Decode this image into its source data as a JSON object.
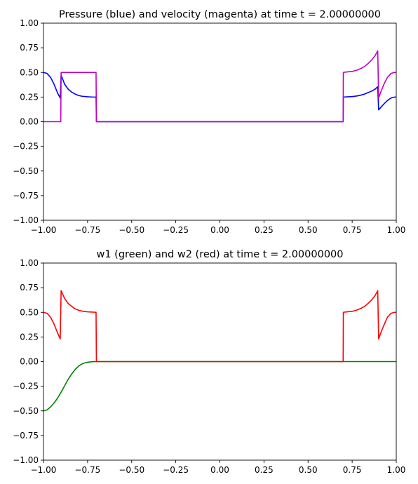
{
  "chart_data": [
    {
      "type": "line",
      "title": "Pressure (blue) and velocity (magenta) at time t =      2.00000000",
      "xlim": [
        -1.0,
        1.0
      ],
      "ylim": [
        -1.0,
        1.0
      ],
      "grid": false,
      "legend": "none",
      "xticks": [
        "−1.00",
        "−0.75",
        "−0.50",
        "−0.25",
        "0.00",
        "0.25",
        "0.50",
        "0.75",
        "1.00"
      ],
      "xtick_values": [
        -1.0,
        -0.75,
        -0.5,
        -0.25,
        0.0,
        0.25,
        0.5,
        0.75,
        1.0
      ],
      "yticks": [
        "−1.00",
        "−0.75",
        "−0.50",
        "−0.25",
        "0.00",
        "0.25",
        "0.50",
        "0.75",
        "1.00"
      ],
      "ytick_values": [
        -1.0,
        -0.75,
        -0.5,
        -0.25,
        0.0,
        0.25,
        0.5,
        0.75,
        1.0
      ],
      "series": [
        {
          "color": "#0000ff",
          "x": [
            -1.0,
            -0.98,
            -0.96,
            -0.94,
            -0.92,
            -0.905,
            -0.9,
            -0.895,
            -0.88,
            -0.86,
            -0.84,
            -0.82,
            -0.8,
            -0.78,
            -0.75,
            -0.72,
            -0.702,
            -0.7,
            -0.69,
            -0.3,
            0.0,
            0.3,
            0.699,
            0.7,
            0.72,
            0.75,
            0.78,
            0.8,
            0.82,
            0.84,
            0.86,
            0.88,
            0.895,
            0.9,
            0.91,
            0.93,
            0.95,
            0.97,
            0.99,
            1.0
          ],
          "y": [
            0.5,
            0.49,
            0.45,
            0.38,
            0.29,
            0.24,
            0.47,
            0.45,
            0.38,
            0.33,
            0.3,
            0.28,
            0.265,
            0.258,
            0.253,
            0.25,
            0.25,
            0.0,
            0.0,
            0.0,
            0.0,
            0.0,
            0.0,
            0.25,
            0.252,
            0.255,
            0.262,
            0.27,
            0.28,
            0.295,
            0.31,
            0.33,
            0.355,
            0.12,
            0.14,
            0.18,
            0.215,
            0.24,
            0.25,
            0.25
          ]
        },
        {
          "color": "#bf00bf",
          "x": [
            -1.0,
            -0.902,
            -0.9,
            -0.702,
            -0.7,
            0.699,
            0.7,
            0.72,
            0.75,
            0.78,
            0.8,
            0.82,
            0.84,
            0.86,
            0.88,
            0.895,
            0.9,
            0.91,
            0.93,
            0.95,
            0.97,
            0.99,
            1.0
          ],
          "y": [
            0.0,
            0.0,
            0.5,
            0.5,
            0.0,
            0.0,
            0.5,
            0.505,
            0.51,
            0.525,
            0.54,
            0.56,
            0.59,
            0.625,
            0.67,
            0.72,
            0.24,
            0.29,
            0.38,
            0.45,
            0.49,
            0.5,
            0.5
          ]
        }
      ]
    },
    {
      "type": "line",
      "title": "w1 (green) and w2 (red) at time t =      2.00000000",
      "xlim": [
        -1.0,
        1.0
      ],
      "ylim": [
        -1.0,
        1.0
      ],
      "grid": false,
      "legend": "none",
      "xticks": [
        "−1.00",
        "−0.75",
        "−0.50",
        "−0.25",
        "0.00",
        "0.25",
        "0.50",
        "0.75",
        "1.00"
      ],
      "xtick_values": [
        -1.0,
        -0.75,
        -0.5,
        -0.25,
        0.0,
        0.25,
        0.5,
        0.75,
        1.0
      ],
      "yticks": [
        "−1.00",
        "−0.75",
        "−0.50",
        "−0.25",
        "0.00",
        "0.25",
        "0.50",
        "0.75",
        "1.00"
      ],
      "ytick_values": [
        -1.0,
        -0.75,
        -0.5,
        -0.25,
        0.0,
        0.25,
        0.5,
        0.75,
        1.0
      ],
      "series": [
        {
          "color": "#008000",
          "x": [
            -1.0,
            -0.98,
            -0.96,
            -0.94,
            -0.92,
            -0.9,
            -0.88,
            -0.86,
            -0.84,
            -0.82,
            -0.8,
            -0.78,
            -0.76,
            -0.74,
            -0.72,
            -0.7,
            -0.68,
            -0.5,
            0.0,
            0.5,
            1.0
          ],
          "y": [
            -0.5,
            -0.49,
            -0.46,
            -0.42,
            -0.37,
            -0.31,
            -0.245,
            -0.18,
            -0.125,
            -0.08,
            -0.045,
            -0.022,
            -0.01,
            -0.004,
            -0.001,
            0.0,
            0.0,
            0.0,
            0.0,
            0.0,
            0.0
          ]
        },
        {
          "color": "#ff0000",
          "x": [
            -1.0,
            -0.98,
            -0.96,
            -0.94,
            -0.92,
            -0.905,
            -0.9,
            -0.895,
            -0.88,
            -0.86,
            -0.84,
            -0.82,
            -0.8,
            -0.78,
            -0.75,
            -0.72,
            -0.702,
            -0.7,
            -0.69,
            0.0,
            0.699,
            0.7,
            0.72,
            0.75,
            0.78,
            0.8,
            0.82,
            0.84,
            0.86,
            0.88,
            0.895,
            0.9,
            0.91,
            0.93,
            0.95,
            0.97,
            0.99,
            1.0
          ],
          "y": [
            0.5,
            0.49,
            0.45,
            0.38,
            0.29,
            0.23,
            0.72,
            0.7,
            0.64,
            0.59,
            0.56,
            0.535,
            0.52,
            0.512,
            0.505,
            0.502,
            0.5,
            0.0,
            0.0,
            0.0,
            0.0,
            0.5,
            0.505,
            0.51,
            0.525,
            0.54,
            0.56,
            0.59,
            0.625,
            0.67,
            0.72,
            0.23,
            0.28,
            0.37,
            0.45,
            0.49,
            0.5,
            0.5
          ]
        }
      ]
    }
  ]
}
